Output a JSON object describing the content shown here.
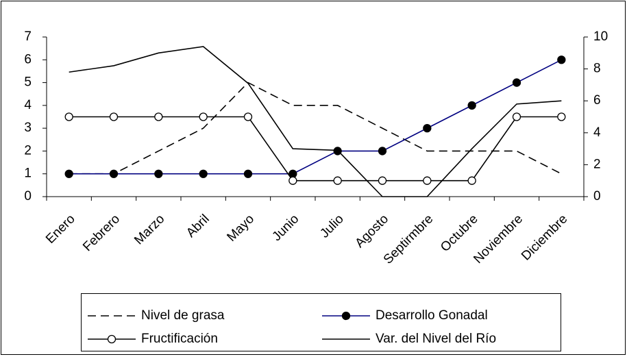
{
  "chart_data": {
    "type": "line",
    "categories": [
      "Enero",
      "Febrero",
      "Marzo",
      "Abril",
      "Mayo",
      "Junio",
      "Julio",
      "Agosto",
      "Septirmbre",
      "Octubre",
      "Noviembre",
      "Diciembre"
    ],
    "ylim": [
      0,
      7
    ],
    "yticks": [
      0,
      1,
      2,
      3,
      4,
      5,
      6,
      7
    ],
    "y2lim": [
      0,
      10
    ],
    "y2ticks": [
      0,
      2,
      4,
      6,
      8,
      10
    ],
    "series": [
      {
        "name": "Nivel de grasa",
        "color": "#000000",
        "dash": true,
        "marker": "none",
        "values": [
          1,
          1,
          2,
          3,
          5,
          4,
          4,
          3,
          2,
          2,
          2,
          1
        ]
      },
      {
        "name": "Desarrollo Gonadal",
        "color": "#000080",
        "dash": false,
        "marker": "filled",
        "values": [
          1,
          1,
          1,
          1,
          1,
          1,
          2,
          2,
          3,
          4,
          5,
          6
        ]
      },
      {
        "name": "Fructificación",
        "color": "#000000",
        "dash": false,
        "marker": "open",
        "values": [
          3.5,
          3.5,
          3.5,
          3.5,
          3.5,
          0.7,
          0.7,
          0.7,
          0.7,
          0.7,
          3.5,
          3.5
        ]
      },
      {
        "name": "Var. del Nivel del Río",
        "color": "#000000",
        "dash": false,
        "marker": "none",
        "axis": "y2",
        "values": [
          7.8,
          8.2,
          9.0,
          9.4,
          7.1,
          3.0,
          2.9,
          0,
          0,
          3.0,
          5.8,
          6.0
        ]
      }
    ]
  }
}
